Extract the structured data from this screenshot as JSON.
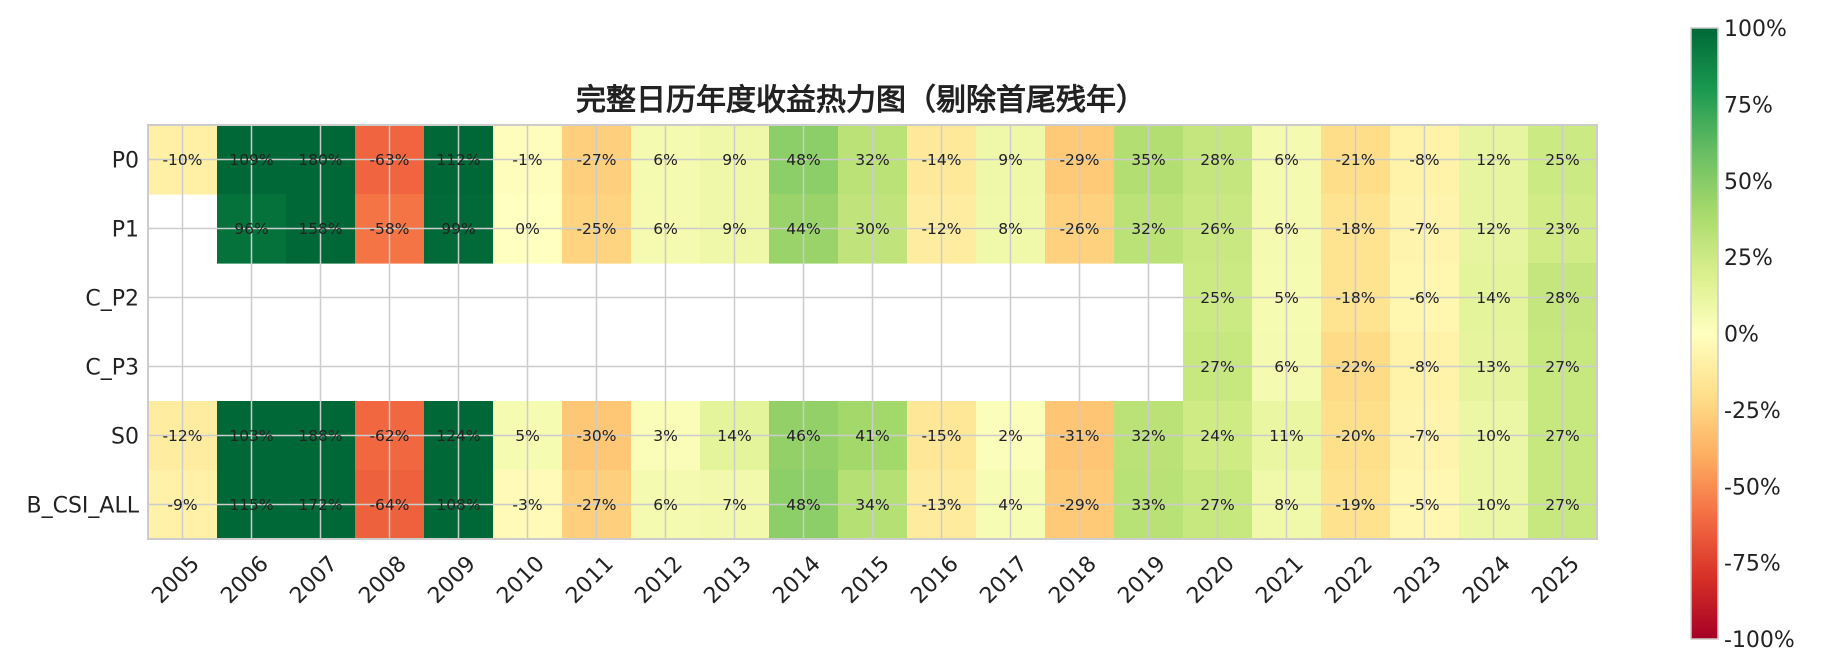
{
  "chart_data": {
    "type": "heatmap",
    "title": "完整日历年度收益热力图（剔除首尾残年）",
    "columns": [
      "2005",
      "2006",
      "2007",
      "2008",
      "2009",
      "2010",
      "2011",
      "2012",
      "2013",
      "2014",
      "2015",
      "2016",
      "2017",
      "2018",
      "2019",
      "2020",
      "2021",
      "2022",
      "2023",
      "2024",
      "2025"
    ],
    "rows": [
      "P0",
      "P1",
      "C_P2",
      "C_P3",
      "S0",
      "B_CSI_ALL"
    ],
    "values": [
      [
        -10,
        109,
        180,
        -63,
        112,
        -1,
        -27,
        6,
        9,
        48,
        32,
        -14,
        9,
        -29,
        35,
        28,
        6,
        -21,
        -8,
        12,
        25
      ],
      [
        null,
        96,
        158,
        -58,
        99,
        0,
        -25,
        6,
        9,
        44,
        30,
        -12,
        8,
        -26,
        32,
        26,
        6,
        -18,
        -7,
        12,
        23
      ],
      [
        null,
        null,
        null,
        null,
        null,
        null,
        null,
        null,
        null,
        null,
        null,
        null,
        null,
        null,
        null,
        25,
        5,
        -18,
        -6,
        14,
        28
      ],
      [
        null,
        null,
        null,
        null,
        null,
        null,
        null,
        null,
        null,
        null,
        null,
        null,
        null,
        null,
        null,
        27,
        6,
        -22,
        -8,
        13,
        27
      ],
      [
        -12,
        103,
        188,
        -62,
        124,
        5,
        -30,
        3,
        14,
        46,
        41,
        -15,
        2,
        -31,
        32,
        24,
        11,
        -20,
        -7,
        10,
        27
      ],
      [
        -9,
        115,
        172,
        -64,
        108,
        -3,
        -27,
        6,
        7,
        48,
        34,
        -13,
        4,
        -29,
        33,
        27,
        8,
        -19,
        -5,
        10,
        27
      ]
    ],
    "value_suffix": "%",
    "colormap": "RdYlGn",
    "vmin": -100,
    "vmax": 100,
    "colorbar_ticks": [
      "100%",
      "75%",
      "50%",
      "25%",
      "0%",
      "-25%",
      "-50%",
      "-75%",
      "-100%"
    ],
    "grid": true,
    "grid_color": "#cccccc"
  }
}
